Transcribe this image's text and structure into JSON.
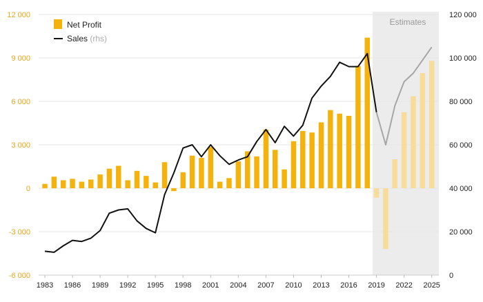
{
  "chart_data": {
    "type": "bar",
    "x": [
      1983,
      1984,
      1985,
      1986,
      1987,
      1988,
      1989,
      1990,
      1991,
      1992,
      1993,
      1994,
      1995,
      1996,
      1997,
      1998,
      1999,
      2000,
      2001,
      2002,
      2003,
      2004,
      2005,
      2006,
      2007,
      2008,
      2009,
      2010,
      2011,
      2012,
      2013,
      2014,
      2015,
      2016,
      2017,
      2018,
      2019,
      2020,
      2021,
      2022,
      2023,
      2024,
      2025
    ],
    "x_ticks": [
      "1983",
      "1986",
      "1989",
      "1992",
      "1995",
      "1998",
      "2001",
      "2004",
      "2007",
      "2010",
      "2013",
      "2016",
      "2019",
      "2022",
      "2025"
    ],
    "series": [
      {
        "name": "Net Profit",
        "kind": "bar",
        "axis": "left",
        "color": "#f5b20c",
        "estimate_color": "#f7dc9a",
        "values": [
          300,
          800,
          550,
          650,
          450,
          600,
          950,
          1350,
          1550,
          550,
          1200,
          850,
          400,
          1800,
          -200,
          1100,
          2250,
          2100,
          2850,
          450,
          700,
          1850,
          2550,
          2200,
          4050,
          2650,
          1300,
          3250,
          3950,
          3850,
          4550,
          5400,
          5150,
          5000,
          8450,
          10400,
          -650,
          -4200,
          2000,
          5250,
          6350,
          7950,
          8800
        ]
      },
      {
        "name": "Sales (rhs)",
        "kind": "line",
        "axis": "right",
        "color": "#111111",
        "estimate_color": "#a6a6a6",
        "values": [
          11000,
          10500,
          13500,
          16000,
          15500,
          17000,
          20500,
          28500,
          30000,
          30500,
          25000,
          21500,
          19500,
          37000,
          47000,
          58500,
          60000,
          54500,
          60000,
          55000,
          51000,
          53000,
          54500,
          61500,
          67000,
          61000,
          68500,
          64000,
          69000,
          81500,
          87000,
          91500,
          98000,
          96000,
          96000,
          102000,
          75000,
          60000,
          78000,
          89000,
          93000,
          99000,
          105000
        ]
      }
    ],
    "estimate_start": 2019,
    "estimates_label": "Estimates",
    "ylim_left": [
      -6000,
      12000
    ],
    "yticks_left": [
      "12 000",
      "9 000",
      "6 000",
      "3 000",
      "0",
      "-3 000",
      "-6 000"
    ],
    "ylim_right": [
      0,
      120000
    ],
    "yticks_right": [
      "120 000",
      "100 000",
      "80 000",
      "60 000",
      "40 000",
      "20 000",
      "0"
    ],
    "legend": [
      {
        "label": "Net Profit",
        "suffix": ""
      },
      {
        "label": "Sales",
        "suffix": "(rhs)"
      }
    ],
    "legend_position": "top-left",
    "grid": true,
    "colors": {
      "left_axis_text": "#e6a516",
      "right_axis_text": "#222222",
      "estimate_band": "#ececec",
      "grid": "#e6e6e6"
    }
  }
}
